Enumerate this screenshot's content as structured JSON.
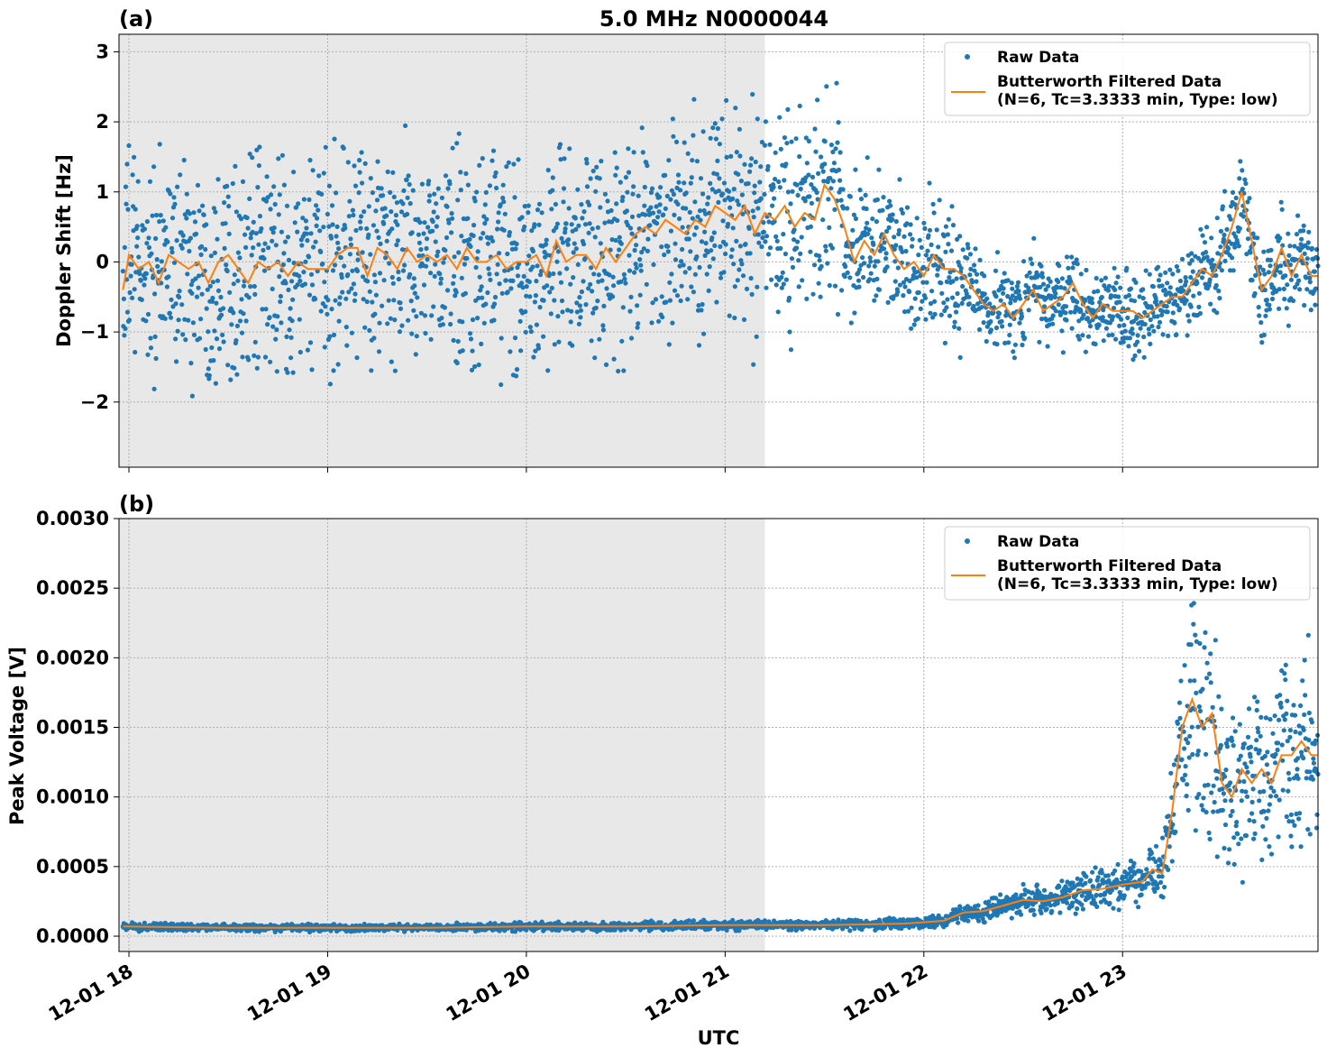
{
  "figure": {
    "title": "5.0 MHz N0000044",
    "xlabel": "UTC",
    "shading_color": "#e8e8e8",
    "raw_color": "#1f77b4",
    "filtered_color": "#ff7f0e"
  },
  "chart_data": [
    {
      "type": "scatter",
      "panel_label": "(a)",
      "ylabel": "Doppler Shift [Hz]",
      "xlim": [
        "2023-12-01T17:57",
        "2023-12-01T23:59"
      ],
      "ylim": [
        -2.93,
        3.25
      ],
      "x_tick_labels": [
        "12-01 18",
        "12-01 19",
        "12-01 20",
        "12-01 21",
        "12-01 22",
        "12-01 23"
      ],
      "x_ticks_hours": [
        18,
        19,
        20,
        21,
        22,
        23
      ],
      "y_ticks": [
        -2,
        -1,
        0,
        1,
        2,
        3
      ],
      "y_tick_labels": [
        "−2",
        "−1",
        "0",
        "1",
        "2",
        "3"
      ],
      "grid": true,
      "legend_position": "top-right",
      "shaded_span_hours": [
        17.95,
        21.2
      ],
      "series": [
        {
          "name": "Raw Data",
          "style": "points",
          "x_hours": [
            17.97,
            18.0,
            18.05,
            18.1,
            18.15,
            18.2,
            18.25,
            18.3,
            18.35,
            18.4,
            18.45,
            18.5,
            18.55,
            18.6,
            18.65,
            18.7,
            18.75,
            18.8,
            18.85,
            18.9,
            18.95,
            19.0,
            19.05,
            19.1,
            19.15,
            19.2,
            19.25,
            19.3,
            19.35,
            19.4,
            19.45,
            19.5,
            19.55,
            19.6,
            19.65,
            19.7,
            19.75,
            19.8,
            19.85,
            19.9,
            19.95,
            20.0,
            20.05,
            20.1,
            20.15,
            20.2,
            20.25,
            20.3,
            20.35,
            20.4,
            20.45,
            20.5,
            20.55,
            20.6,
            20.65,
            20.7,
            20.75,
            20.8,
            20.85,
            20.9,
            20.95,
            21.0,
            21.05,
            21.1,
            21.15,
            21.2,
            21.25,
            21.3,
            21.35,
            21.4,
            21.45,
            21.5,
            21.55,
            21.6,
            21.65,
            21.7,
            21.75,
            21.8,
            21.85,
            21.9,
            21.95,
            22.0,
            22.05,
            22.1,
            22.15,
            22.2,
            22.25,
            22.3,
            22.35,
            22.4,
            22.45,
            22.5,
            22.55,
            22.6,
            22.65,
            22.7,
            22.75,
            22.8,
            22.85,
            22.9,
            22.95,
            23.0,
            23.05,
            23.1,
            23.15,
            23.2,
            23.25,
            23.3,
            23.35,
            23.4,
            23.45,
            23.5,
            23.55,
            23.6,
            23.65,
            23.7,
            23.75,
            23.8,
            23.85,
            23.9,
            23.95,
            23.98
          ],
          "y": [
            -0.4,
            0.1,
            -0.1,
            0.0,
            -0.3,
            0.1,
            0.0,
            -0.1,
            0.0,
            -0.3,
            0.0,
            0.1,
            -0.1,
            -0.3,
            0.0,
            -0.1,
            0.0,
            -0.2,
            0.0,
            -0.1,
            -0.1,
            -0.1,
            0.1,
            0.2,
            0.2,
            -0.2,
            0.2,
            0.1,
            -0.1,
            0.2,
            0.0,
            0.1,
            0.0,
            0.1,
            -0.1,
            0.2,
            0.0,
            0.0,
            0.1,
            -0.1,
            0.0,
            0.0,
            0.1,
            -0.2,
            0.3,
            0.0,
            0.1,
            0.1,
            -0.1,
            0.2,
            0.0,
            0.2,
            0.4,
            0.5,
            0.4,
            0.6,
            0.5,
            0.4,
            0.6,
            0.5,
            0.8,
            0.7,
            0.6,
            0.8,
            0.4,
            0.7,
            0.6,
            0.8,
            0.5,
            0.7,
            0.6,
            1.1,
            0.9,
            0.5,
            0.0,
            0.3,
            0.1,
            0.4,
            0.1,
            -0.1,
            0.0,
            -0.2,
            0.1,
            -0.1,
            -0.1,
            -0.2,
            -0.4,
            -0.6,
            -0.7,
            -0.6,
            -0.8,
            -0.6,
            -0.4,
            -0.7,
            -0.6,
            -0.5,
            -0.3,
            -0.6,
            -0.8,
            -0.6,
            -0.7,
            -0.7,
            -0.7,
            -0.8,
            -0.7,
            -0.6,
            -0.5,
            -0.5,
            -0.3,
            -0.1,
            -0.2,
            0.1,
            0.5,
            1.0,
            0.3,
            -0.4,
            -0.2,
            0.2,
            -0.2,
            0.1,
            -0.2,
            -0.2
          ]
        },
        {
          "name": "Butterworth Filtered Data\n(N=6, Tc=3.3333 min, Type: low)",
          "style": "line",
          "x_hours": [
            17.97,
            18.0,
            18.05,
            18.1,
            18.15,
            18.2,
            18.25,
            18.3,
            18.35,
            18.4,
            18.45,
            18.5,
            18.55,
            18.6,
            18.65,
            18.7,
            18.75,
            18.8,
            18.85,
            18.9,
            18.95,
            19.0,
            19.05,
            19.1,
            19.15,
            19.2,
            19.25,
            19.3,
            19.35,
            19.4,
            19.45,
            19.5,
            19.55,
            19.6,
            19.65,
            19.7,
            19.75,
            19.8,
            19.85,
            19.9,
            19.95,
            20.0,
            20.05,
            20.1,
            20.15,
            20.2,
            20.25,
            20.3,
            20.35,
            20.4,
            20.45,
            20.5,
            20.55,
            20.6,
            20.65,
            20.7,
            20.75,
            20.8,
            20.85,
            20.9,
            20.95,
            21.0,
            21.05,
            21.1,
            21.15,
            21.2,
            21.25,
            21.3,
            21.35,
            21.4,
            21.45,
            21.5,
            21.55,
            21.6,
            21.65,
            21.7,
            21.75,
            21.8,
            21.85,
            21.9,
            21.95,
            22.0,
            22.05,
            22.1,
            22.15,
            22.2,
            22.25,
            22.3,
            22.35,
            22.4,
            22.45,
            22.5,
            22.55,
            22.6,
            22.65,
            22.7,
            22.75,
            22.8,
            22.85,
            22.9,
            22.95,
            23.0,
            23.05,
            23.1,
            23.15,
            23.2,
            23.25,
            23.3,
            23.35,
            23.4,
            23.45,
            23.5,
            23.55,
            23.6,
            23.65,
            23.7,
            23.75,
            23.8,
            23.85,
            23.9,
            23.95,
            23.98
          ],
          "y": [
            -0.4,
            0.1,
            -0.1,
            0.0,
            -0.3,
            0.1,
            0.0,
            -0.1,
            0.0,
            -0.3,
            0.0,
            0.1,
            -0.1,
            -0.3,
            0.0,
            -0.1,
            0.0,
            -0.2,
            0.0,
            -0.1,
            -0.1,
            -0.1,
            0.1,
            0.2,
            0.2,
            -0.2,
            0.2,
            0.1,
            -0.1,
            0.2,
            0.0,
            0.1,
            0.0,
            0.1,
            -0.1,
            0.2,
            0.0,
            0.0,
            0.1,
            -0.1,
            0.0,
            0.0,
            0.1,
            -0.2,
            0.3,
            0.0,
            0.1,
            0.1,
            -0.1,
            0.2,
            0.0,
            0.2,
            0.4,
            0.5,
            0.4,
            0.6,
            0.5,
            0.4,
            0.6,
            0.5,
            0.8,
            0.7,
            0.6,
            0.8,
            0.4,
            0.7,
            0.6,
            0.8,
            0.5,
            0.7,
            0.6,
            1.1,
            0.9,
            0.5,
            0.0,
            0.3,
            0.1,
            0.4,
            0.1,
            -0.1,
            0.0,
            -0.2,
            0.1,
            -0.1,
            -0.1,
            -0.2,
            -0.4,
            -0.6,
            -0.7,
            -0.6,
            -0.8,
            -0.6,
            -0.4,
            -0.7,
            -0.6,
            -0.5,
            -0.3,
            -0.6,
            -0.8,
            -0.6,
            -0.7,
            -0.7,
            -0.7,
            -0.8,
            -0.7,
            -0.6,
            -0.5,
            -0.5,
            -0.3,
            -0.1,
            -0.2,
            0.1,
            0.5,
            1.0,
            0.3,
            -0.4,
            -0.2,
            0.2,
            -0.2,
            0.1,
            -0.2,
            -0.2
          ]
        }
      ]
    },
    {
      "type": "scatter",
      "panel_label": "(b)",
      "ylabel": "Peak Voltage [V]",
      "xlim": [
        "2023-12-01T17:57",
        "2023-12-01T23:59"
      ],
      "ylim": [
        -0.00011,
        0.003
      ],
      "x_tick_labels": [
        "12-01 18",
        "12-01 19",
        "12-01 20",
        "12-01 21",
        "12-01 22",
        "12-01 23"
      ],
      "x_ticks_hours": [
        18,
        19,
        20,
        21,
        22,
        23
      ],
      "y_ticks": [
        0,
        0.0005,
        0.001,
        0.0015,
        0.002,
        0.0025,
        0.003
      ],
      "y_tick_labels": [
        "0.0000",
        "0.0005",
        "0.0010",
        "0.0015",
        "0.0020",
        "0.0025",
        "0.0030"
      ],
      "grid": true,
      "legend_position": "top-right",
      "shaded_span_hours": [
        17.95,
        21.2
      ],
      "series": [
        {
          "name": "Raw Data",
          "style": "points",
          "x_hours": [
            17.97,
            18.5,
            19.0,
            19.5,
            20.0,
            20.5,
            21.0,
            21.5,
            21.9,
            22.0,
            22.1,
            22.2,
            22.3,
            22.4,
            22.5,
            22.6,
            22.7,
            22.8,
            22.9,
            23.0,
            23.1,
            23.15,
            23.2,
            23.25,
            23.3,
            23.35,
            23.4,
            23.45,
            23.5,
            23.55,
            23.6,
            23.65,
            23.7,
            23.75,
            23.8,
            23.85,
            23.9,
            23.95,
            23.98
          ],
          "y": [
            7e-05,
            6e-05,
            6e-05,
            6e-05,
            7e-05,
            7e-05,
            8e-05,
            8e-05,
            9e-05,
            0.0001,
            0.00011,
            0.00017,
            0.00018,
            0.00022,
            0.00026,
            0.00025,
            0.00028,
            0.00033,
            0.00034,
            0.00037,
            0.00039,
            0.00048,
            0.00045,
            0.0009,
            0.0015,
            0.0017,
            0.0015,
            0.0016,
            0.0011,
            0.001,
            0.0012,
            0.0011,
            0.0012,
            0.0011,
            0.0013,
            0.0013,
            0.0014,
            0.0013,
            0.0013
          ]
        },
        {
          "name": "Butterworth Filtered Data\n(N=6, Tc=3.3333 min, Type: low)",
          "style": "line",
          "x_hours": [
            17.97,
            18.5,
            19.0,
            19.5,
            20.0,
            20.5,
            21.0,
            21.5,
            21.9,
            22.0,
            22.1,
            22.2,
            22.3,
            22.4,
            22.5,
            22.6,
            22.7,
            22.8,
            22.9,
            23.0,
            23.1,
            23.15,
            23.2,
            23.25,
            23.3,
            23.35,
            23.4,
            23.45,
            23.5,
            23.55,
            23.6,
            23.65,
            23.7,
            23.75,
            23.8,
            23.85,
            23.9,
            23.95,
            23.98
          ],
          "y": [
            7e-05,
            6e-05,
            6e-05,
            6e-05,
            7e-05,
            7e-05,
            8e-05,
            8e-05,
            9e-05,
            0.0001,
            0.00011,
            0.00017,
            0.00018,
            0.00022,
            0.00026,
            0.00025,
            0.00028,
            0.00033,
            0.00034,
            0.00037,
            0.00039,
            0.00048,
            0.00045,
            0.0009,
            0.0015,
            0.0017,
            0.0015,
            0.0016,
            0.0011,
            0.001,
            0.0012,
            0.0011,
            0.0012,
            0.0011,
            0.0013,
            0.0013,
            0.0014,
            0.0013,
            0.0013
          ]
        }
      ]
    }
  ]
}
